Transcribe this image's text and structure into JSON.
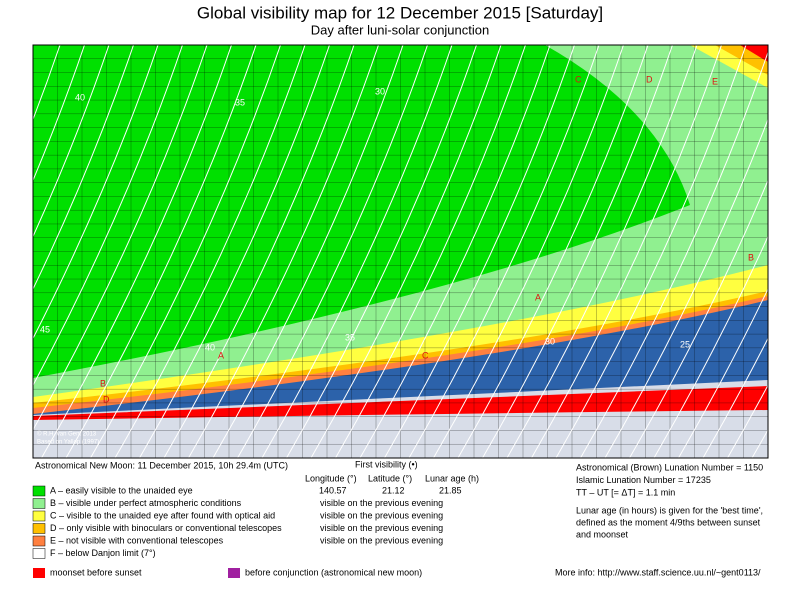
{
  "header": {
    "title": "Global visibility map for 12 December 2015 [Saturday]",
    "subtitle": "Day after luni-solar conjunction"
  },
  "map": {
    "credit": [
      "© R.H. van Gent 2013",
      "Based on Yallop (1997)"
    ],
    "contour_labels": [
      "40",
      "35",
      "30",
      "45",
      "40",
      "35",
      "30",
      "25"
    ],
    "zone_labels": [
      "A",
      "A",
      "B",
      "B",
      "C",
      "C",
      "D",
      "D",
      "E"
    ]
  },
  "info": {
    "new_moon": "Astronomical New Moon: 11 December 2015, 10h 29.4m (UTC)",
    "first_visibility": "First visibility (•)",
    "columns": [
      "Longitude (°)",
      "Latitude (°)",
      "Lunar age (h)"
    ],
    "values": [
      "140.57",
      "21.12",
      "21.85"
    ]
  },
  "legend": [
    {
      "label": "A – easily visible to the unaided eye",
      "color": "#00e000"
    },
    {
      "label": "B – visible under perfect atmospheric conditions",
      "color": "#90f090",
      "note": "visible on the previous evening"
    },
    {
      "label": "C – visible to the unaided eye after found with optical aid",
      "color": "#ffff40",
      "note": "visible on the previous evening"
    },
    {
      "label": "D – only visible with binoculars or conventional telescopes",
      "color": "#ffc000",
      "note": "visible on the previous evening"
    },
    {
      "label": "E – not visible with conventional telescopes",
      "color": "#ff8040",
      "note": "visible on the previous evening"
    },
    {
      "label": "F – below Danjon limit (7°)",
      "color": "#ffffff"
    }
  ],
  "lunation": [
    "Astronomical (Brown) Lunation Number = 1150",
    "Islamic Lunation Number = 17235",
    "TT – UT [= ΔT] = 1.1 min"
  ],
  "best_time": [
    "Lunar age (in hours) is given for the 'best time',",
    "defined as the moment 4/9ths between sunset",
    "and moonset"
  ],
  "footer": {
    "moonset": {
      "label": "moonset before sunset",
      "color": "#ff0000"
    },
    "conjunction": {
      "label": "before conjunction (astronomical new moon)",
      "color": "#a020a0"
    },
    "more_info": "More info: http://www.staff.science.uu.nl/~gent0113/"
  }
}
